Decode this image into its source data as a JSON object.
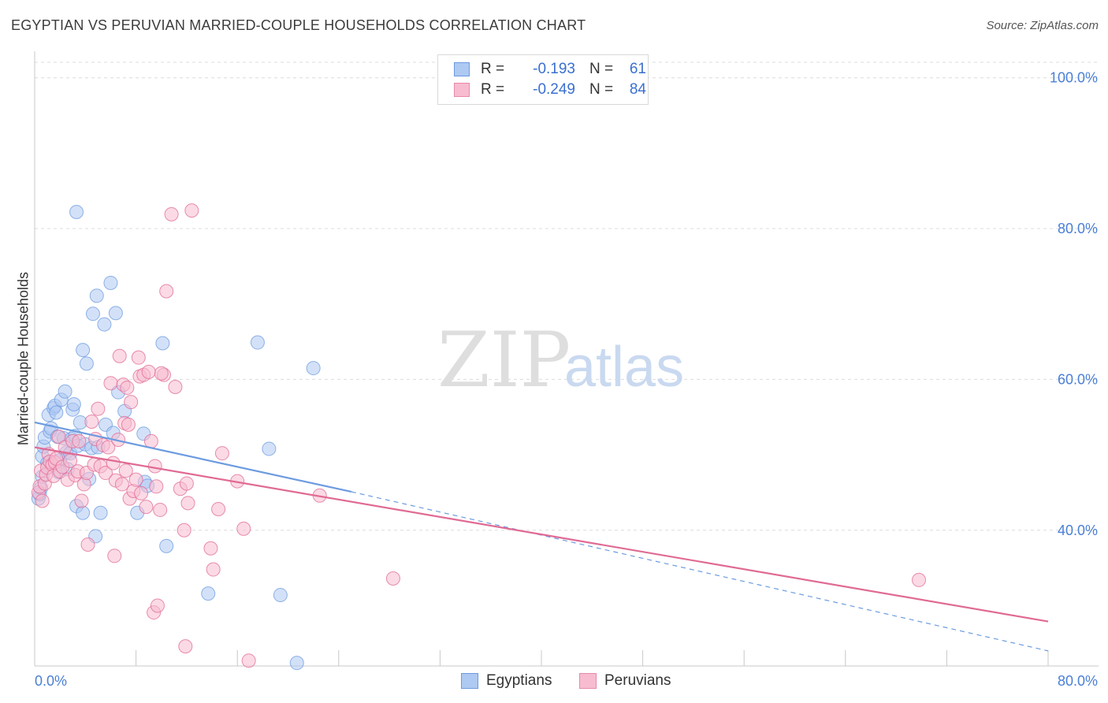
{
  "title": "EGYPTIAN VS PERUVIAN MARRIED-COUPLE HOUSEHOLDS CORRELATION CHART",
  "source": "Source: ZipAtlas.com",
  "watermark": {
    "zip": "ZIP",
    "atlas": "atlas"
  },
  "legend": {
    "r_label": "R =",
    "n_label": "N =",
    "rows": [
      {
        "name": "Egyptians",
        "r": "-0.193",
        "n": "61",
        "fill": "#aec9f2",
        "stroke": "#6c9be0"
      },
      {
        "name": "Peruvians",
        "r": "-0.249",
        "n": "84",
        "fill": "#f7bcd0",
        "stroke": "#e88aa9"
      }
    ]
  },
  "chart_data": {
    "type": "scatter",
    "title": "EGYPTIAN VS PERUVIAN MARRIED-COUPLE HOUSEHOLDS CORRELATION CHART",
    "xlabel": "",
    "ylabel": "Married-couple Households",
    "xlim": [
      0,
      80
    ],
    "ylim": [
      22,
      103
    ],
    "x_tick_labels": [
      "0.0%",
      "80.0%"
    ],
    "y_ticks": [
      40,
      60,
      80,
      100
    ],
    "y_tick_labels": [
      "40.0%",
      "60.0%",
      "80.0%",
      "100.0%"
    ],
    "grid": "horizontal dashed",
    "series": [
      {
        "name": "Egyptians",
        "color": "#6c9be0",
        "fill": "#aec9f2",
        "trend": {
          "x0": 0,
          "y0": 54.3,
          "x1": 25,
          "y1": 45.1,
          "dash_to_x": 80,
          "dash_to_y": 24.0
        },
        "points": [
          [
            0.3,
            44.2
          ],
          [
            0.4,
            44.8
          ],
          [
            0.5,
            45.6
          ],
          [
            0.6,
            47.1
          ],
          [
            0.6,
            49.8
          ],
          [
            0.7,
            51.1
          ],
          [
            0.8,
            52.3
          ],
          [
            1.0,
            48.9
          ],
          [
            1.1,
            55.3
          ],
          [
            1.2,
            53.1
          ],
          [
            1.3,
            53.5
          ],
          [
            1.5,
            56.2
          ],
          [
            1.6,
            56.5
          ],
          [
            1.7,
            55.6
          ],
          [
            1.8,
            52.4
          ],
          [
            1.9,
            47.7
          ],
          [
            2.0,
            49.3
          ],
          [
            2.1,
            57.3
          ],
          [
            2.3,
            52.2
          ],
          [
            2.4,
            58.4
          ],
          [
            2.5,
            50.3
          ],
          [
            2.6,
            48.1
          ],
          [
            2.8,
            50.2
          ],
          [
            2.9,
            52.1
          ],
          [
            3.0,
            56.0
          ],
          [
            3.1,
            56.7
          ],
          [
            3.2,
            52.5
          ],
          [
            3.3,
            43.2
          ],
          [
            3.4,
            51.2
          ],
          [
            3.6,
            54.3
          ],
          [
            3.8,
            63.9
          ],
          [
            3.8,
            42.3
          ],
          [
            4.0,
            51.4
          ],
          [
            4.1,
            62.1
          ],
          [
            4.3,
            46.8
          ],
          [
            4.5,
            50.9
          ],
          [
            4.6,
            68.7
          ],
          [
            4.8,
            39.2
          ],
          [
            4.9,
            71.1
          ],
          [
            5.0,
            51.0
          ],
          [
            5.2,
            42.3
          ],
          [
            5.5,
            67.3
          ],
          [
            5.6,
            54.0
          ],
          [
            6.0,
            72.8
          ],
          [
            6.2,
            52.9
          ],
          [
            6.4,
            68.8
          ],
          [
            6.6,
            58.3
          ],
          [
            7.1,
            55.8
          ],
          [
            8.1,
            42.3
          ],
          [
            8.6,
            52.8
          ],
          [
            8.7,
            46.4
          ],
          [
            8.9,
            45.9
          ],
          [
            10.1,
            64.8
          ],
          [
            10.4,
            37.9
          ],
          [
            13.7,
            31.6
          ],
          [
            17.6,
            64.9
          ],
          [
            18.5,
            50.8
          ],
          [
            19.4,
            31.4
          ],
          [
            20.7,
            22.4
          ],
          [
            22.0,
            61.5
          ],
          [
            3.3,
            82.2
          ]
        ]
      },
      {
        "name": "Peruvians",
        "color": "#e06a94",
        "fill": "#f7bcd0",
        "trend": {
          "x0": 0,
          "y0": 51.0,
          "x1": 80,
          "y1": 27.9
        },
        "points": [
          [
            0.3,
            45.0
          ],
          [
            0.4,
            45.8
          ],
          [
            0.5,
            47.9
          ],
          [
            0.6,
            43.9
          ],
          [
            0.8,
            46.2
          ],
          [
            0.9,
            47.4
          ],
          [
            1.0,
            48.3
          ],
          [
            1.1,
            50.1
          ],
          [
            1.2,
            49.1
          ],
          [
            1.4,
            48.7
          ],
          [
            1.5,
            47.2
          ],
          [
            1.6,
            49.0
          ],
          [
            1.7,
            49.5
          ],
          [
            1.9,
            52.4
          ],
          [
            2.0,
            47.8
          ],
          [
            2.2,
            48.4
          ],
          [
            2.4,
            51.0
          ],
          [
            2.6,
            46.7
          ],
          [
            2.8,
            49.2
          ],
          [
            3.0,
            51.8
          ],
          [
            3.2,
            47.3
          ],
          [
            3.4,
            47.8
          ],
          [
            3.5,
            51.8
          ],
          [
            3.7,
            43.9
          ],
          [
            3.9,
            46.1
          ],
          [
            4.1,
            47.6
          ],
          [
            4.2,
            38.1
          ],
          [
            4.5,
            54.4
          ],
          [
            4.7,
            48.7
          ],
          [
            4.8,
            52.1
          ],
          [
            5.0,
            56.1
          ],
          [
            5.2,
            48.5
          ],
          [
            5.4,
            51.3
          ],
          [
            5.6,
            47.6
          ],
          [
            5.8,
            51.0
          ],
          [
            6.0,
            59.5
          ],
          [
            6.2,
            48.9
          ],
          [
            6.3,
            36.6
          ],
          [
            6.4,
            46.6
          ],
          [
            6.6,
            52.0
          ],
          [
            6.7,
            63.1
          ],
          [
            6.9,
            46.1
          ],
          [
            7.0,
            59.3
          ],
          [
            7.1,
            54.2
          ],
          [
            7.2,
            47.9
          ],
          [
            7.3,
            58.9
          ],
          [
            7.5,
            44.2
          ],
          [
            7.6,
            57.0
          ],
          [
            7.8,
            45.2
          ],
          [
            8.0,
            46.7
          ],
          [
            8.2,
            62.9
          ],
          [
            8.3,
            60.4
          ],
          [
            8.4,
            44.9
          ],
          [
            8.6,
            60.6
          ],
          [
            8.8,
            43.1
          ],
          [
            9.2,
            51.8
          ],
          [
            9.4,
            29.1
          ],
          [
            9.5,
            48.5
          ],
          [
            9.6,
            45.8
          ],
          [
            9.7,
            30.0
          ],
          [
            9.9,
            42.7
          ],
          [
            10.4,
            71.7
          ],
          [
            10.8,
            81.9
          ],
          [
            11.1,
            59.0
          ],
          [
            11.5,
            45.5
          ],
          [
            11.8,
            40.0
          ],
          [
            11.9,
            24.6
          ],
          [
            12.1,
            43.6
          ],
          [
            12.4,
            82.4
          ],
          [
            13.9,
            37.6
          ],
          [
            14.1,
            34.8
          ],
          [
            14.8,
            50.2
          ],
          [
            16.0,
            46.5
          ],
          [
            16.5,
            40.2
          ],
          [
            16.9,
            22.7
          ],
          [
            22.5,
            44.6
          ],
          [
            28.3,
            33.6
          ],
          [
            69.8,
            33.4
          ],
          [
            10.2,
            60.6
          ],
          [
            12.0,
            46.2
          ],
          [
            14.5,
            42.8
          ],
          [
            10.0,
            60.8
          ],
          [
            9.0,
            61.0
          ],
          [
            7.4,
            54.0
          ]
        ]
      }
    ]
  }
}
